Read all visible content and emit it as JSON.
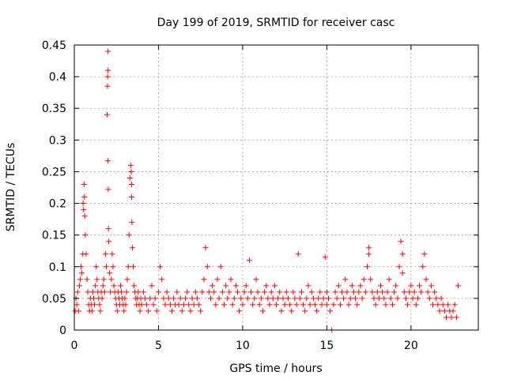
{
  "chart_data": {
    "type": "scatter",
    "title": "Day 199 of 2019, SRMTID for receiver casc",
    "xlabel": "GPS time / hours",
    "ylabel": "SRMTID / TECUs",
    "xlim": [
      0,
      24
    ],
    "ylim": [
      0,
      0.45
    ],
    "xticks": [
      0,
      5,
      10,
      15,
      20
    ],
    "yticks": [
      0,
      0.05,
      0.1,
      0.15,
      0.2,
      0.25,
      0.3,
      0.35,
      0.4,
      0.45
    ],
    "xtick_labels": [
      "0",
      "5",
      "10",
      "15",
      "20"
    ],
    "ytick_labels": [
      "0",
      "0.05",
      "0.1",
      "0.15",
      "0.2",
      "0.25",
      "0.3",
      "0.35",
      "0.4",
      "0.45"
    ],
    "grid": true,
    "marker": "+",
    "color": "#ff0000",
    "series": [
      {
        "name": "SRMTID",
        "x": [
          0.05,
          0.1,
          0.15,
          0.2,
          0.25,
          0.3,
          0.35,
          0.4,
          0.45,
          0.5,
          0.52,
          0.55,
          0.58,
          0.6,
          0.62,
          0.65,
          0.7,
          0.75,
          0.8,
          0.85,
          0.9,
          0.95,
          1.0,
          1.05,
          1.1,
          1.15,
          1.2,
          1.25,
          1.3,
          1.35,
          1.4,
          1.45,
          1.5,
          1.55,
          1.6,
          1.65,
          1.7,
          1.75,
          1.8,
          1.85,
          1.9,
          1.95,
          1.97,
          1.98,
          2.0,
          2.0,
          2.0,
          2.02,
          2.03,
          2.05,
          2.1,
          2.15,
          2.2,
          2.25,
          2.3,
          2.35,
          2.4,
          2.45,
          2.5,
          2.55,
          2.6,
          2.65,
          2.7,
          2.75,
          2.8,
          2.85,
          2.9,
          2.95,
          3.0,
          3.05,
          3.1,
          3.15,
          3.2,
          3.25,
          3.3,
          3.35,
          3.38,
          3.4,
          3.4,
          3.42,
          3.45,
          3.5,
          3.55,
          3.6,
          3.65,
          3.7,
          3.75,
          3.8,
          3.85,
          3.9,
          3.95,
          4.0,
          4.1,
          4.2,
          4.3,
          4.4,
          4.5,
          4.6,
          4.7,
          4.8,
          4.9,
          5.0,
          5.1,
          5.2,
          5.3,
          5.4,
          5.5,
          5.6,
          5.7,
          5.8,
          5.9,
          6.0,
          6.1,
          6.2,
          6.3,
          6.4,
          6.5,
          6.6,
          6.7,
          6.8,
          6.9,
          7.0,
          7.1,
          7.2,
          7.3,
          7.4,
          7.5,
          7.6,
          7.7,
          7.8,
          7.9,
          8.0,
          8.1,
          8.2,
          8.3,
          8.4,
          8.5,
          8.6,
          8.7,
          8.8,
          8.9,
          9.0,
          9.1,
          9.2,
          9.3,
          9.4,
          9.5,
          9.6,
          9.7,
          9.8,
          9.9,
          10.0,
          10.1,
          10.2,
          10.3,
          10.4,
          10.5,
          10.6,
          10.7,
          10.8,
          10.9,
          11.0,
          11.1,
          11.2,
          11.3,
          11.4,
          11.5,
          11.6,
          11.7,
          11.8,
          11.9,
          12.0,
          12.1,
          12.2,
          12.3,
          12.4,
          12.5,
          12.6,
          12.7,
          12.8,
          12.9,
          13.0,
          13.1,
          13.2,
          13.3,
          13.4,
          13.5,
          13.6,
          13.7,
          13.8,
          13.9,
          14.0,
          14.1,
          14.2,
          14.3,
          14.4,
          14.5,
          14.6,
          14.7,
          14.8,
          14.9,
          15.0,
          15.0,
          15.1,
          15.2,
          15.3,
          15.4,
          15.5,
          15.6,
          15.7,
          15.8,
          15.9,
          16.0,
          16.1,
          16.2,
          16.3,
          16.4,
          16.5,
          16.6,
          16.7,
          16.8,
          16.9,
          17.0,
          17.1,
          17.2,
          17.3,
          17.4,
          17.5,
          17.5,
          17.6,
          17.7,
          17.8,
          17.9,
          18.0,
          18.1,
          18.2,
          18.3,
          18.4,
          18.5,
          18.6,
          18.7,
          18.8,
          18.9,
          19.0,
          19.1,
          19.2,
          19.3,
          19.4,
          19.5,
          19.5,
          19.6,
          19.7,
          19.8,
          19.9,
          20.0,
          20.1,
          20.2,
          20.3,
          20.4,
          20.5,
          20.6,
          20.7,
          20.8,
          20.9,
          21.0,
          21.1,
          21.2,
          21.3,
          21.4,
          21.5,
          21.6,
          21.7,
          21.8,
          21.9,
          22.0,
          22.1,
          22.2,
          22.3,
          22.4,
          22.5,
          22.6,
          22.7,
          22.8
        ],
        "y": [
          0.03,
          0.05,
          0.04,
          0.06,
          0.03,
          0.07,
          0.08,
          0.1,
          0.09,
          0.12,
          0.2,
          0.19,
          0.23,
          0.21,
          0.18,
          0.15,
          0.12,
          0.08,
          0.06,
          0.04,
          0.03,
          0.05,
          0.04,
          0.03,
          0.06,
          0.05,
          0.04,
          0.07,
          0.1,
          0.08,
          0.06,
          0.05,
          0.04,
          0.03,
          0.06,
          0.05,
          0.07,
          0.08,
          0.06,
          0.12,
          0.1,
          0.34,
          0.385,
          0.4,
          0.41,
          0.44,
          0.267,
          0.222,
          0.16,
          0.14,
          0.09,
          0.06,
          0.08,
          0.12,
          0.1,
          0.07,
          0.06,
          0.05,
          0.04,
          0.03,
          0.06,
          0.05,
          0.04,
          0.07,
          0.06,
          0.05,
          0.04,
          0.03,
          0.05,
          0.04,
          0.06,
          0.08,
          0.1,
          0.15,
          0.24,
          0.26,
          0.25,
          0.23,
          0.21,
          0.17,
          0.13,
          0.1,
          0.07,
          0.06,
          0.05,
          0.04,
          0.05,
          0.06,
          0.04,
          0.03,
          0.05,
          0.04,
          0.06,
          0.05,
          0.04,
          0.03,
          0.05,
          0.07,
          0.04,
          0.05,
          0.03,
          0.06,
          0.1,
          0.08,
          0.05,
          0.04,
          0.06,
          0.05,
          0.04,
          0.03,
          0.05,
          0.04,
          0.06,
          0.04,
          0.05,
          0.03,
          0.04,
          0.05,
          0.06,
          0.04,
          0.03,
          0.05,
          0.04,
          0.06,
          0.05,
          0.04,
          0.03,
          0.06,
          0.08,
          0.13,
          0.1,
          0.06,
          0.05,
          0.07,
          0.06,
          0.04,
          0.08,
          0.05,
          0.1,
          0.06,
          0.04,
          0.07,
          0.05,
          0.06,
          0.08,
          0.04,
          0.05,
          0.07,
          0.06,
          0.03,
          0.05,
          0.04,
          0.06,
          0.07,
          0.05,
          0.11,
          0.06,
          0.04,
          0.05,
          0.08,
          0.06,
          0.04,
          0.05,
          0.03,
          0.06,
          0.07,
          0.05,
          0.04,
          0.06,
          0.05,
          0.07,
          0.04,
          0.05,
          0.06,
          0.03,
          0.05,
          0.04,
          0.06,
          0.05,
          0.04,
          0.03,
          0.06,
          0.05,
          0.04,
          0.12,
          0.05,
          0.06,
          0.04,
          0.03,
          0.05,
          0.07,
          0.04,
          0.06,
          0.05,
          0.04,
          0.03,
          0.05,
          0.06,
          0.04,
          0.05,
          0.115,
          0.06,
          0.04,
          0.05,
          0.03,
          0.0,
          0.04,
          0.06,
          0.05,
          0.07,
          0.04,
          0.06,
          0.05,
          0.08,
          0.06,
          0.04,
          0.05,
          0.07,
          0.06,
          0.05,
          0.04,
          0.06,
          0.07,
          0.05,
          0.08,
          0.06,
          0.1,
          0.12,
          0.13,
          0.08,
          0.06,
          0.05,
          0.04,
          0.06,
          0.05,
          0.07,
          0.06,
          0.05,
          0.04,
          0.06,
          0.08,
          0.05,
          0.04,
          0.06,
          0.07,
          0.05,
          0.1,
          0.14,
          0.12,
          0.09,
          0.06,
          0.05,
          0.04,
          0.06,
          0.07,
          0.05,
          0.06,
          0.04,
          0.05,
          0.07,
          0.06,
          0.1,
          0.12,
          0.08,
          0.06,
          0.05,
          0.07,
          0.04,
          0.06,
          0.05,
          0.04,
          0.03,
          0.05,
          0.04,
          0.03,
          0.02,
          0.04,
          0.03,
          0.02,
          0.03,
          0.04,
          0.02,
          0.07
        ]
      }
    ]
  }
}
